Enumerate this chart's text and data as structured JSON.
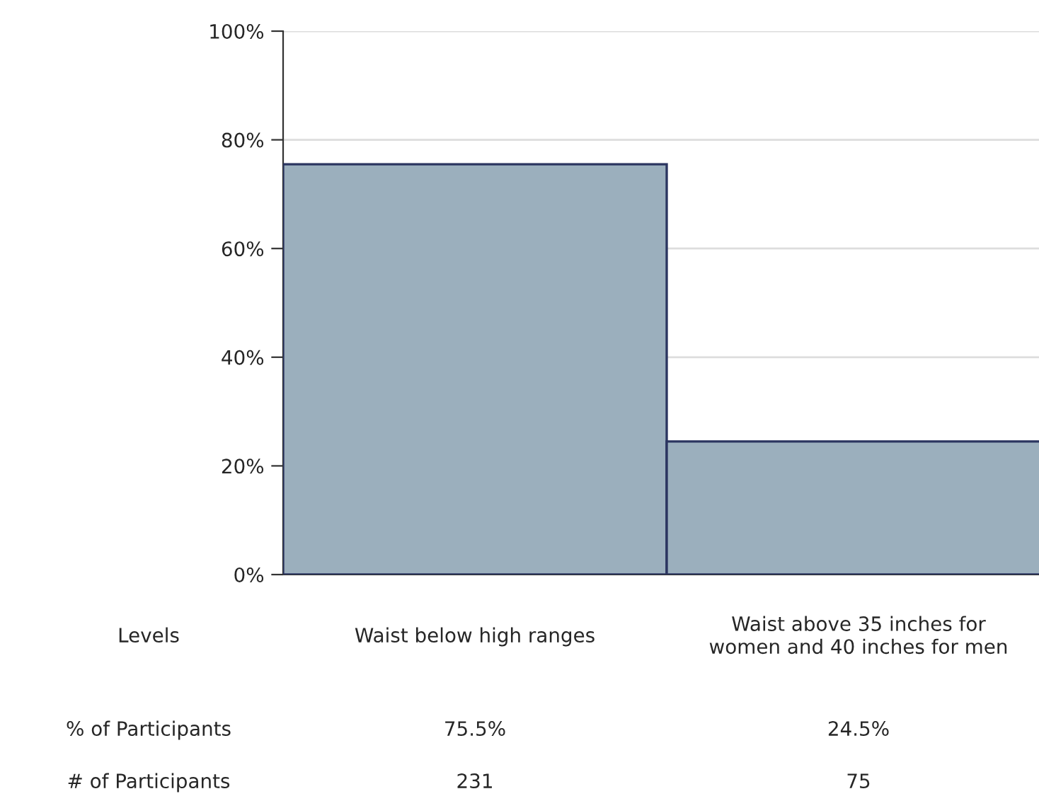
{
  "chart_data": {
    "type": "bar",
    "categories": [
      "Waist below high ranges",
      "Waist above 35 inches for women and 40 inches for men"
    ],
    "values": [
      75.5,
      24.5
    ],
    "color": "#9bafbd",
    "value_labels": [
      "75.5%",
      "24.5%"
    ],
    "ylim": [
      0,
      100
    ],
    "yticks": [
      {
        "value": 0,
        "label": "0%"
      },
      {
        "value": 20,
        "label": "20%"
      },
      {
        "value": 40,
        "label": "40%"
      },
      {
        "value": 60,
        "label": "60%"
      },
      {
        "value": 80,
        "label": "80%"
      },
      {
        "value": 100,
        "label": "100%"
      }
    ],
    "grid": "y",
    "annotations": [
      "Levels",
      "% of Participants",
      "# of Participants",
      "231",
      "75"
    ]
  }
}
